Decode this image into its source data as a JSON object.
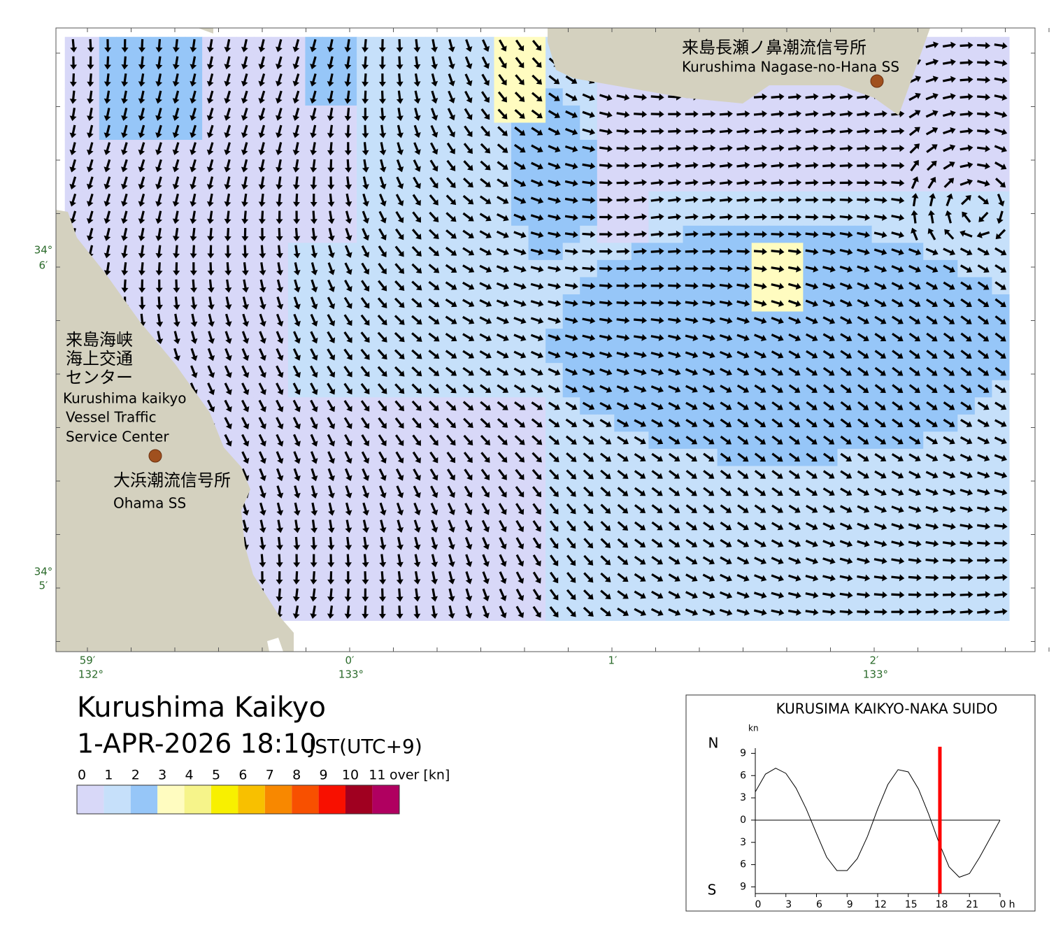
{
  "map": {
    "lat_labels": [
      [
        "34°",
        "6′"
      ],
      [
        "34°",
        "5′"
      ]
    ],
    "lon_labels": [
      [
        "59′",
        "132°"
      ],
      [
        "0′",
        "133°"
      ],
      [
        "1′"
      ],
      [
        "2′",
        "133°"
      ]
    ],
    "places": [
      {
        "lines": [
          "来島長瀬ノ鼻潮流信号所"
        ],
        "en": [
          "Kurushima Nagase-no-Hana SS"
        ]
      },
      {
        "lines": [
          "来島海峡",
          "海上交通",
          "センター"
        ],
        "en": [
          "Kurushima kaikyo",
          "Vessel Traffic",
          "Service Center"
        ]
      },
      {
        "lines": [
          "大浜潮流信号所"
        ],
        "en": [
          "Ohama SS"
        ]
      }
    ]
  },
  "header": {
    "title": "Kurushima Kaikyo",
    "datetime": "1-APR-2026 18:10",
    "zone": "JST(UTC+9)"
  },
  "legend": {
    "labels": [
      "0",
      "1",
      "2",
      "3",
      "4",
      "5",
      "6",
      "7",
      "8",
      "9",
      "10",
      "11",
      "over [kn]"
    ],
    "colors": [
      "#d8d8f8",
      "#c6e0fa",
      "#96c6f8",
      "#fffcc0",
      "#f6f48a",
      "#f8f000",
      "#f8c000",
      "#f88800",
      "#f85000",
      "#f81000",
      "#a00020",
      "#b00060"
    ]
  },
  "chart_data": {
    "type": "line",
    "title": "KURUSIMA KAIKYO-NAKA SUIDO",
    "unit": "kn",
    "north": "N",
    "south": "S",
    "x_unit": "h",
    "x": [
      0,
      1,
      2,
      3,
      4,
      5,
      6,
      7,
      8,
      9,
      10,
      11,
      12,
      13,
      14,
      15,
      16,
      17,
      18,
      19,
      20,
      21,
      22,
      23,
      24
    ],
    "values": [
      3.8,
      6.2,
      7,
      6.3,
      4.3,
      1.5,
      -1.8,
      -5,
      -6.8,
      -6.8,
      -5.2,
      -2.2,
      1.5,
      4.8,
      6.8,
      6.5,
      4.2,
      0.8,
      -3,
      -6.3,
      -7.7,
      -7.2,
      -5,
      -2.5,
      0
    ],
    "marker_time": 18.1,
    "marker_color": "#ff0000",
    "xlim": [
      0,
      24
    ],
    "ylim": [
      -9.9,
      9.7
    ],
    "xticks": [
      0,
      3,
      6,
      9,
      12,
      15,
      18,
      21,
      {
        "value": 24,
        "label": "0"
      }
    ],
    "yticks": [
      9,
      6,
      3,
      0,
      {
        "value": -3,
        "label": "3"
      },
      {
        "value": -6,
        "label": "6"
      },
      {
        "value": -9,
        "label": "9"
      }
    ]
  }
}
